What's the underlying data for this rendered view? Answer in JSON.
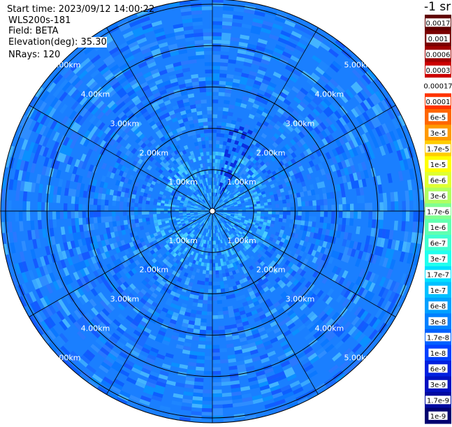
{
  "info": {
    "start_time": "Start time: 2023/09/12 14:00:22",
    "site": "WLS200s-181",
    "field": "Field: BETA",
    "elevation": "Elevation(deg): 35.30",
    "nrays": "NRays: 120"
  },
  "chart_data": {
    "type": "heatmap",
    "projection": "polar",
    "title": "",
    "field": "BETA",
    "elevation_deg": 35.3,
    "nrays": 120,
    "range_rings_km": [
      1.0,
      2.0,
      3.0,
      4.0,
      5.0
    ],
    "ring_labels": [
      "1.00km",
      "2.00km",
      "3.00km",
      "4.00km",
      "5.00km"
    ],
    "max_range_km": 5.05,
    "spokes_deg": [
      0,
      30,
      60,
      90,
      120,
      150,
      180,
      210,
      240,
      270,
      300,
      330
    ],
    "dominant_value": "1.7e-8 to 1e-7",
    "colorbar": {
      "unit_label": "-1 sr",
      "labels": [
        "0.0017",
        "0.001",
        "0.0006",
        "0.0003",
        "0.00017",
        "0.0001",
        "6e-5",
        "3e-5",
        "1.7e-5",
        "1e-5",
        "6e-6",
        "3e-6",
        "1.7e-6",
        "1e-6",
        "6e-7",
        "3e-7",
        "1.7e-7",
        "1e-7",
        "6e-8",
        "3e-8",
        "1.7e-8",
        "1e-8",
        "6e-9",
        "3e-9",
        "1.7e-9",
        "1e-9"
      ],
      "colors": [
        "#600000",
        "#7a0000",
        "#a00000",
        "#cc0000",
        "#ffffff",
        "#ff3300",
        "#ff6600",
        "#ff9900",
        "#ffcc00",
        "#ffff00",
        "#e0ff30",
        "#b0ff60",
        "#80ff90",
        "#60ffb0",
        "#40ffd0",
        "#20ffee",
        "#00e0ff",
        "#00c0ff",
        "#00a0ff",
        "#0080ff",
        "#0060ff",
        "#0040ff",
        "#0020e0",
        "#0010c0",
        "#000aa0",
        "#000070"
      ]
    }
  }
}
